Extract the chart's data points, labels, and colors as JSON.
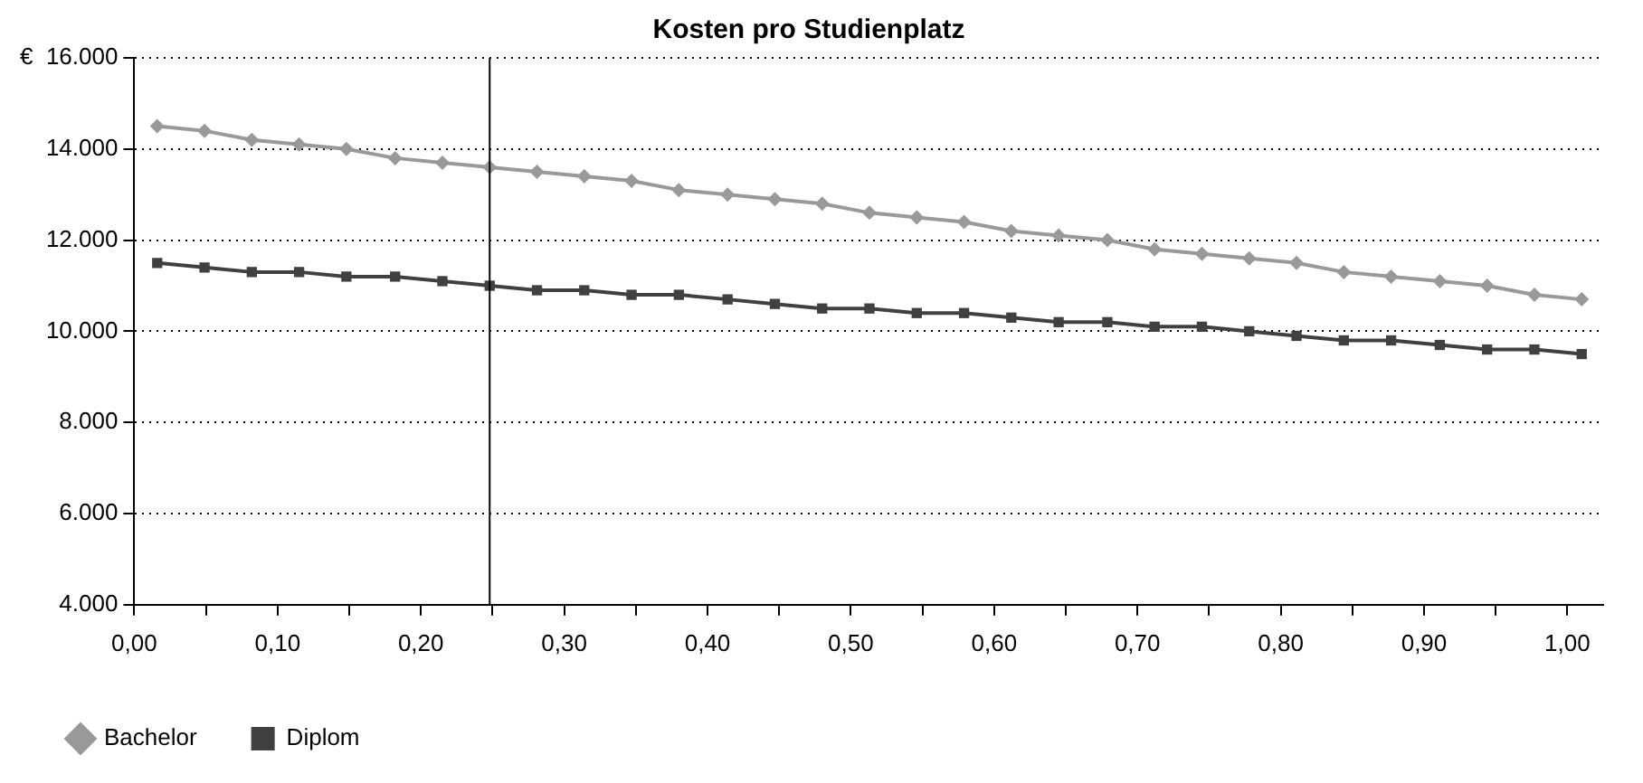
{
  "chart_data": {
    "type": "line",
    "title": "Kosten pro Studienplatz",
    "x": [
      0.016,
      0.049,
      0.082,
      0.115,
      0.148,
      0.182,
      0.215,
      0.248,
      0.281,
      0.314,
      0.347,
      0.38,
      0.414,
      0.447,
      0.48,
      0.513,
      0.546,
      0.579,
      0.612,
      0.645,
      0.679,
      0.712,
      0.745,
      0.778,
      0.811,
      0.844,
      0.877,
      0.911,
      0.944,
      0.977,
      1.01
    ],
    "series": [
      {
        "name": "Bachelor",
        "color": "#999999",
        "marker": "diamond",
        "values": [
          14500,
          14400,
          14200,
          14100,
          14000,
          13800,
          13700,
          13600,
          13500,
          13400,
          13300,
          13100,
          13000,
          12900,
          12800,
          12600,
          12500,
          12400,
          12200,
          12100,
          12000,
          11800,
          11700,
          11600,
          11500,
          11300,
          11200,
          11100,
          11000,
          10800,
          10700
        ]
      },
      {
        "name": "Diplom",
        "color": "#404040",
        "marker": "square",
        "values": [
          11500,
          11400,
          11300,
          11300,
          11200,
          11200,
          11100,
          11000,
          10900,
          10900,
          10800,
          10800,
          10700,
          10600,
          10500,
          10500,
          10400,
          10400,
          10300,
          10200,
          10200,
          10100,
          10100,
          10000,
          9900,
          9800,
          9800,
          9700,
          9600,
          9600,
          9500
        ]
      }
    ],
    "xlim": [
      0,
      1.025
    ],
    "xticks": [
      {
        "value": 0,
        "label": "0,00"
      },
      {
        "value": 0.05,
        "label": null
      },
      {
        "value": 0.1,
        "label": "0,10"
      },
      {
        "value": 0.15,
        "label": null
      },
      {
        "value": 0.2,
        "label": "0,20"
      },
      {
        "value": 0.25,
        "label": null
      },
      {
        "value": 0.3,
        "label": "0,30"
      },
      {
        "value": 0.35,
        "label": null
      },
      {
        "value": 0.4,
        "label": "0,40"
      },
      {
        "value": 0.45,
        "label": null
      },
      {
        "value": 0.5,
        "label": "0,50"
      },
      {
        "value": 0.55,
        "label": null
      },
      {
        "value": 0.6,
        "label": "0,60"
      },
      {
        "value": 0.65,
        "label": null
      },
      {
        "value": 0.7,
        "label": "0,70"
      },
      {
        "value": 0.75,
        "label": null
      },
      {
        "value": 0.8,
        "label": "0,80"
      },
      {
        "value": 0.85,
        "label": null
      },
      {
        "value": 0.9,
        "label": "0,90"
      },
      {
        "value": 0.95,
        "label": null
      },
      {
        "value": 1,
        "label": "1,00"
      }
    ],
    "ylim": [
      4000,
      16000
    ],
    "yticks": [
      {
        "value": 4000,
        "label": "4.000"
      },
      {
        "value": 6000,
        "label": "6.000"
      },
      {
        "value": 8000,
        "label": "8.000"
      },
      {
        "value": 10000,
        "label": "10.000"
      },
      {
        "value": 12000,
        "label": "12.000"
      },
      {
        "value": 14000,
        "label": "14.000"
      },
      {
        "value": 16000,
        "label": "€  16.000"
      }
    ],
    "ref_lines": [
      {
        "axis": "x",
        "value": 0.248,
        "color": "#000000"
      }
    ],
    "grid": "y",
    "legend": "bottom left",
    "line_style": "solid"
  }
}
